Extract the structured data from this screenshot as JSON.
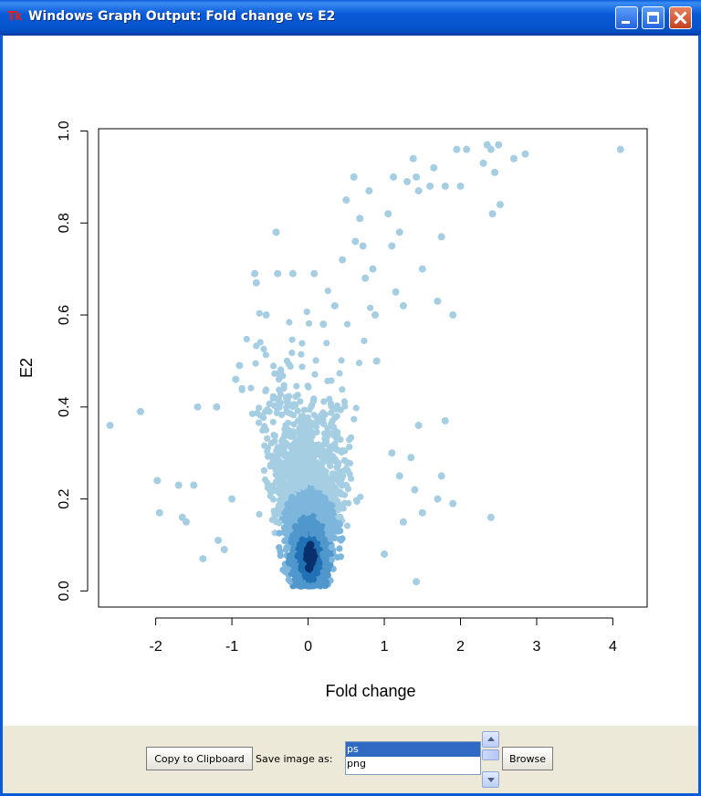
{
  "window": {
    "title": "Windows Graph Output: Fold change vs E2",
    "icon_text": "Tk",
    "icon": "tk-feather-icon",
    "titlebar_color": "#0a5bd8"
  },
  "chart_data": {
    "type": "scatter",
    "style": "density-colored points (smoothScatter style, light blue to dark blue)",
    "xlabel": "Fold change",
    "ylabel": "E2",
    "xlim": [
      -2.75,
      4.45
    ],
    "ylim": [
      -0.035,
      1.005
    ],
    "xticks": [
      -2,
      -1,
      0,
      1,
      2,
      3,
      4
    ],
    "yticks": [
      0.0,
      0.2,
      0.4,
      0.6,
      0.8,
      1.0
    ],
    "grid": false,
    "colors": {
      "points_light": "#a6cee3",
      "points_mid": "#6baed6",
      "points_dark": "#08306b"
    },
    "outlier_points": [
      {
        "x": -2.6,
        "y": 0.36
      },
      {
        "x": -2.2,
        "y": 0.39
      },
      {
        "x": -1.98,
        "y": 0.24
      },
      {
        "x": -1.95,
        "y": 0.17
      },
      {
        "x": -1.7,
        "y": 0.23
      },
      {
        "x": -1.65,
        "y": 0.16
      },
      {
        "x": -1.6,
        "y": 0.15
      },
      {
        "x": -1.5,
        "y": 0.23
      },
      {
        "x": -1.45,
        "y": 0.4
      },
      {
        "x": -1.38,
        "y": 0.07
      },
      {
        "x": -1.2,
        "y": 0.4
      },
      {
        "x": -1.18,
        "y": 0.11
      },
      {
        "x": -1.1,
        "y": 0.09
      },
      {
        "x": -1.0,
        "y": 0.2
      },
      {
        "x": -0.95,
        "y": 0.46
      },
      {
        "x": -0.9,
        "y": 0.49
      },
      {
        "x": -0.7,
        "y": 0.69
      },
      {
        "x": -0.68,
        "y": 0.67
      },
      {
        "x": -0.55,
        "y": 0.6
      },
      {
        "x": -0.42,
        "y": 0.78
      },
      {
        "x": -0.4,
        "y": 0.69
      },
      {
        "x": -0.2,
        "y": 0.69
      },
      {
        "x": 0.08,
        "y": 0.69
      },
      {
        "x": 0.2,
        "y": 0.58
      },
      {
        "x": 0.35,
        "y": 0.62
      },
      {
        "x": 0.45,
        "y": 0.72
      },
      {
        "x": 0.5,
        "y": 0.85
      },
      {
        "x": 0.6,
        "y": 0.9
      },
      {
        "x": 0.62,
        "y": 0.76
      },
      {
        "x": 0.68,
        "y": 0.81
      },
      {
        "x": 0.72,
        "y": 0.75
      },
      {
        "x": 0.75,
        "y": 0.68
      },
      {
        "x": 0.8,
        "y": 0.87
      },
      {
        "x": 0.85,
        "y": 0.7
      },
      {
        "x": 0.88,
        "y": 0.6
      },
      {
        "x": 0.9,
        "y": 0.5
      },
      {
        "x": 1.05,
        "y": 0.82
      },
      {
        "x": 1.1,
        "y": 0.75
      },
      {
        "x": 1.12,
        "y": 0.9
      },
      {
        "x": 1.15,
        "y": 0.65
      },
      {
        "x": 1.2,
        "y": 0.78
      },
      {
        "x": 1.25,
        "y": 0.62
      },
      {
        "x": 1.3,
        "y": 0.89
      },
      {
        "x": 1.38,
        "y": 0.94
      },
      {
        "x": 1.42,
        "y": 0.9
      },
      {
        "x": 1.45,
        "y": 0.87
      },
      {
        "x": 1.5,
        "y": 0.7
      },
      {
        "x": 1.6,
        "y": 0.88
      },
      {
        "x": 1.65,
        "y": 0.92
      },
      {
        "x": 1.7,
        "y": 0.63
      },
      {
        "x": 1.75,
        "y": 0.77
      },
      {
        "x": 1.8,
        "y": 0.88
      },
      {
        "x": 1.9,
        "y": 0.6
      },
      {
        "x": 1.95,
        "y": 0.96
      },
      {
        "x": 2.0,
        "y": 0.88
      },
      {
        "x": 2.08,
        "y": 0.96
      },
      {
        "x": 2.3,
        "y": 0.93
      },
      {
        "x": 2.35,
        "y": 0.97
      },
      {
        "x": 2.4,
        "y": 0.96
      },
      {
        "x": 2.45,
        "y": 0.91
      },
      {
        "x": 2.5,
        "y": 0.97
      },
      {
        "x": 2.52,
        "y": 0.84
      },
      {
        "x": 2.42,
        "y": 0.82
      },
      {
        "x": 2.7,
        "y": 0.94
      },
      {
        "x": 2.85,
        "y": 0.95
      },
      {
        "x": 4.1,
        "y": 0.96
      },
      {
        "x": 1.42,
        "y": 0.02
      },
      {
        "x": 2.4,
        "y": 0.16
      },
      {
        "x": 1.9,
        "y": 0.19
      },
      {
        "x": 1.75,
        "y": 0.25
      },
      {
        "x": 1.7,
        "y": 0.2
      },
      {
        "x": 1.8,
        "y": 0.37
      },
      {
        "x": 1.45,
        "y": 0.36
      },
      {
        "x": 1.35,
        "y": 0.29
      },
      {
        "x": 1.5,
        "y": 0.17
      },
      {
        "x": 1.4,
        "y": 0.22
      },
      {
        "x": 1.25,
        "y": 0.15
      },
      {
        "x": 1.2,
        "y": 0.25
      },
      {
        "x": 1.1,
        "y": 0.3
      },
      {
        "x": 1.0,
        "y": 0.08
      }
    ],
    "density_core": {
      "description": "dense V-shaped cloud; left arm from (0, 0.05) up to about (-0.4, 0.65), right arm from (0, 0.05) up to about (0.4, 0.6); darkest near (0.02, 0.07)",
      "peak": {
        "x": 0.02,
        "y": 0.07
      }
    }
  },
  "toolbar": {
    "copy_label": "Copy to Clipboard",
    "save_label": "Save image as:",
    "browse_label": "Browse",
    "formats": [
      "ps",
      "png"
    ],
    "selected_format": "ps",
    "background": "#ece9d8"
  }
}
